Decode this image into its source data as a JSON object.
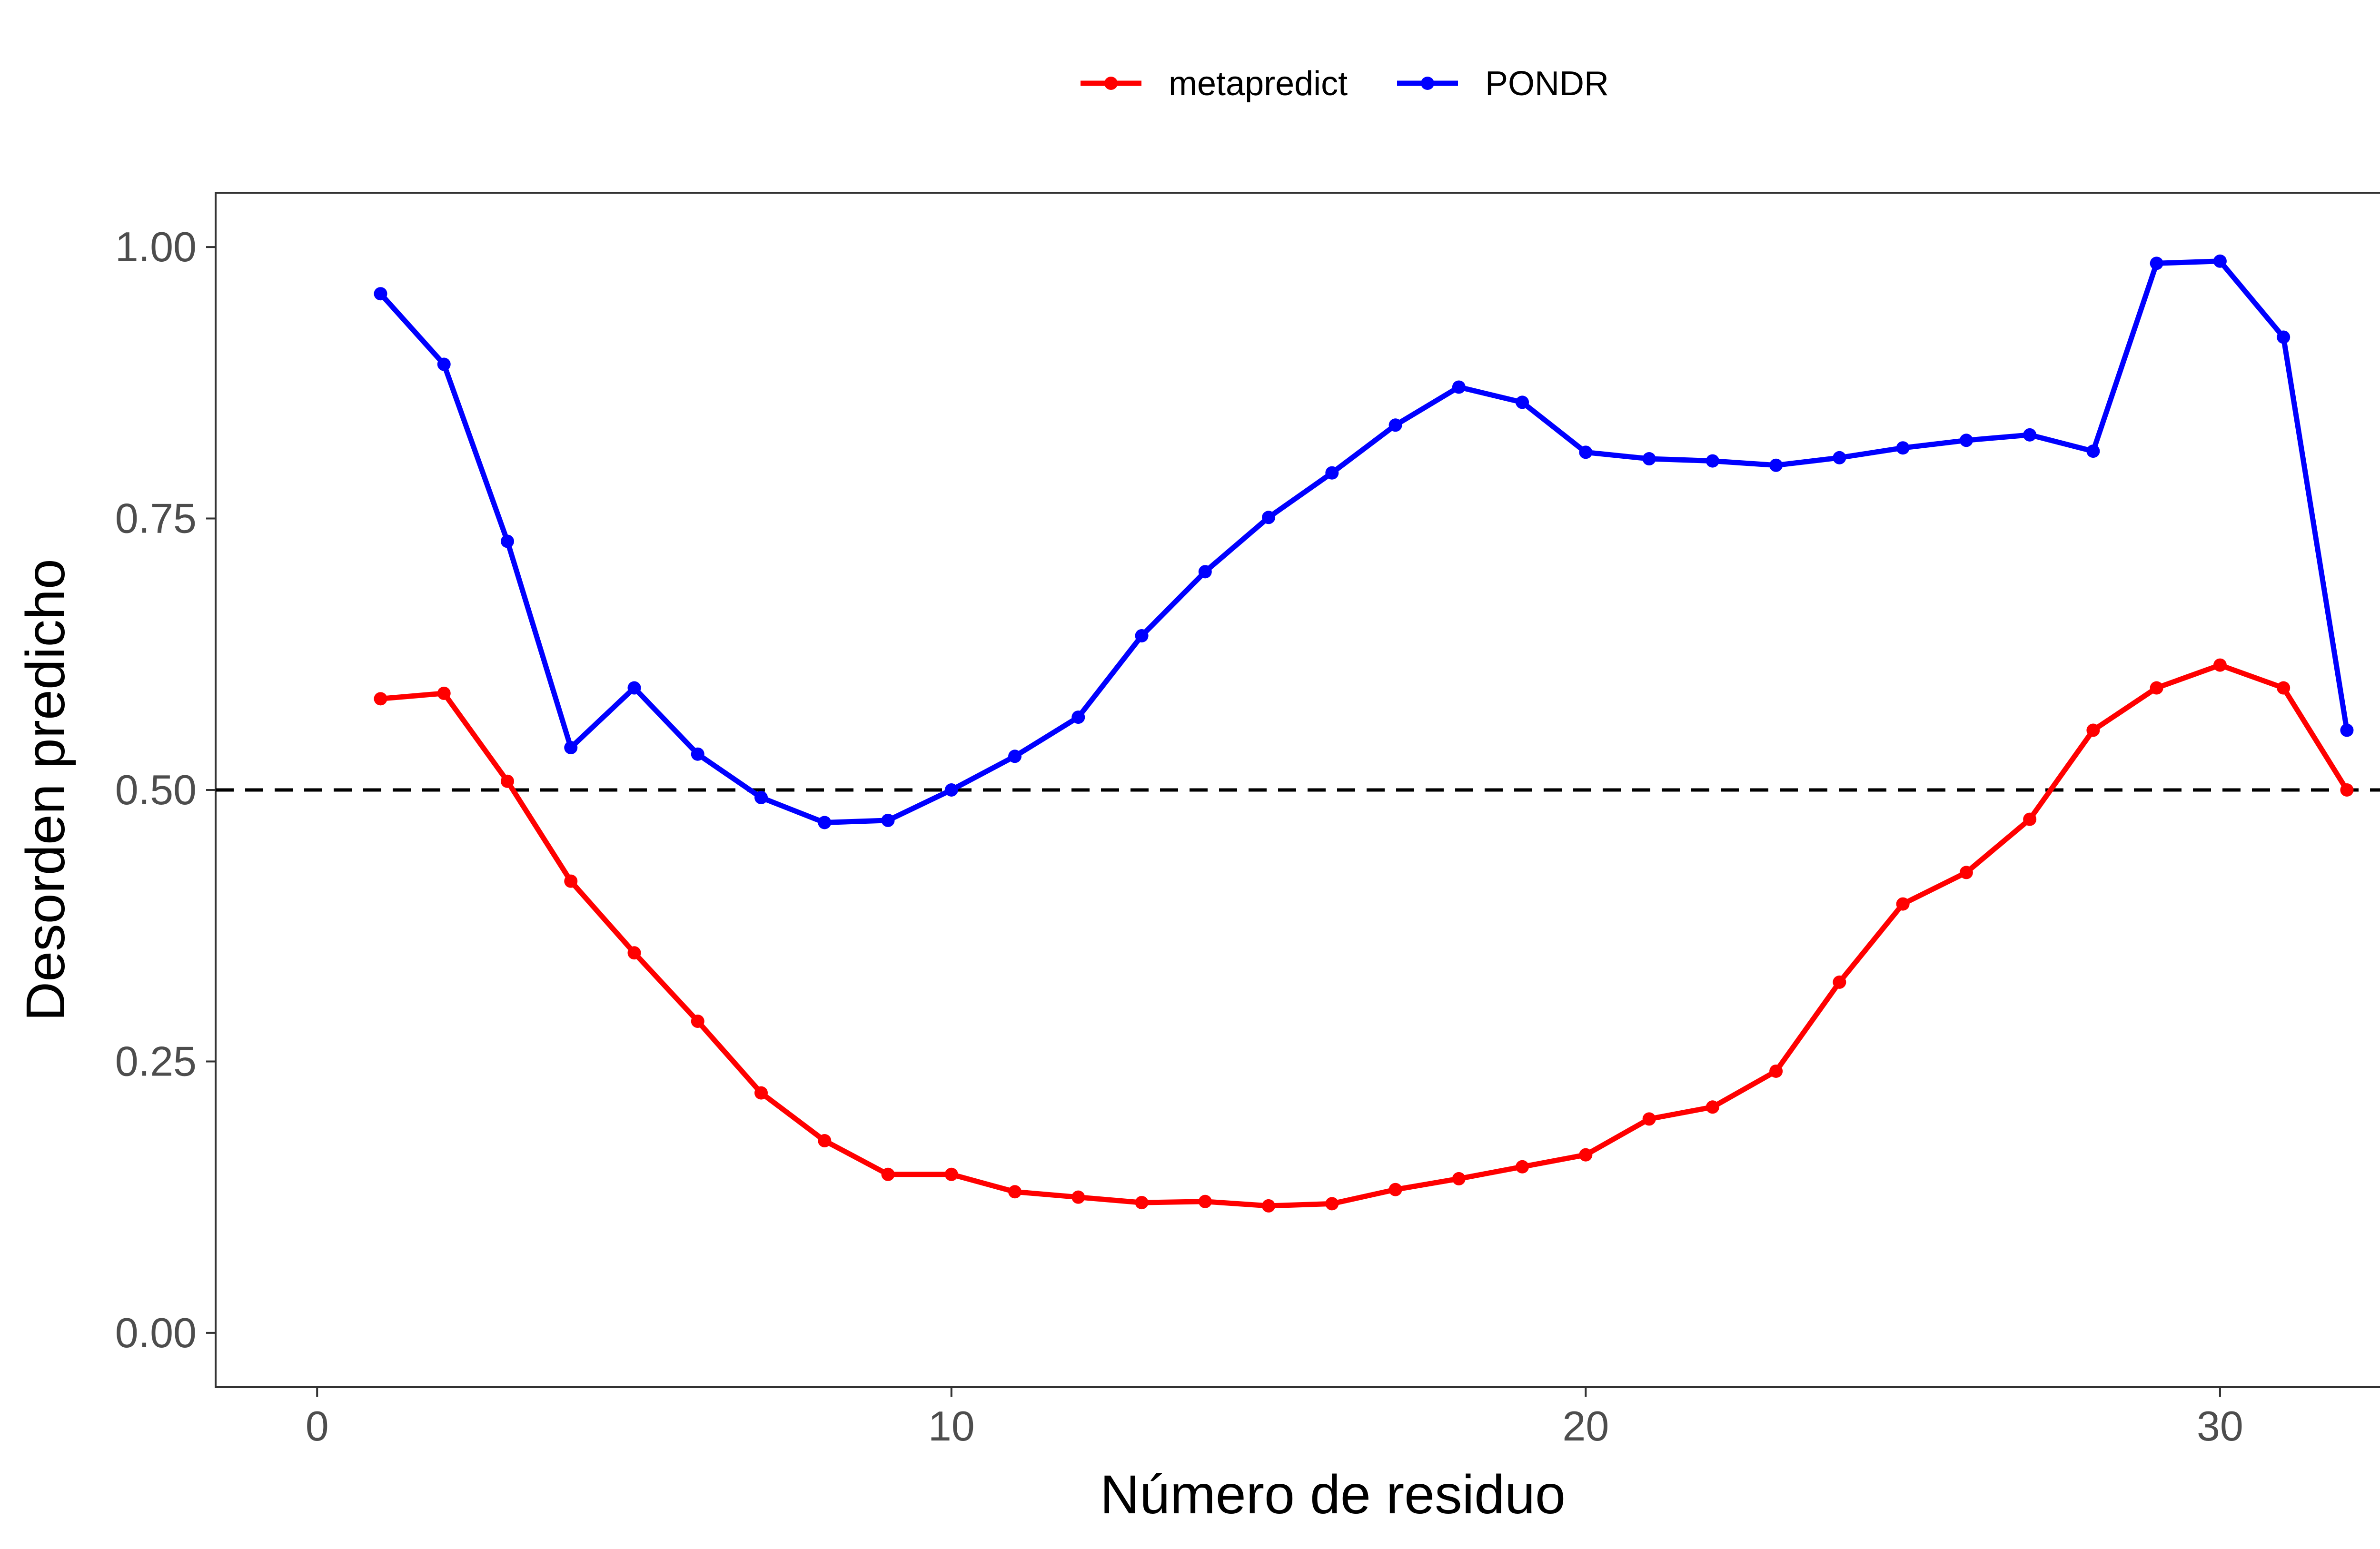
{
  "chart_data": {
    "type": "line",
    "xlabel": "Número de residuo",
    "ylabel": "Desorden predicho",
    "xlim": [
      -1.6,
      33.4
    ],
    "ylim": [
      -0.05,
      1.05
    ],
    "xticks": [
      0,
      10,
      20,
      30
    ],
    "xtick_labels": [
      "0",
      "10",
      "20",
      "30"
    ],
    "yticks": [
      0,
      0.25,
      0.5,
      0.75,
      1.0
    ],
    "ytick_labels": [
      "0.00",
      "0.25",
      "0.50",
      "0.75",
      "1.00"
    ],
    "threshold": 0.5,
    "threshold_style": "dashed",
    "legend_position": "top",
    "grid": false,
    "x": [
      1,
      2,
      3,
      4,
      5,
      6,
      7,
      8,
      9,
      10,
      11,
      12,
      13,
      14,
      15,
      16,
      17,
      18,
      19,
      20,
      21,
      22,
      23,
      24,
      25,
      26,
      27,
      28,
      29,
      30,
      31,
      32
    ],
    "series": [
      {
        "name": "metapredict",
        "color": "#ff0000",
        "values": [
          0.584,
          0.589,
          0.508,
          0.416,
          0.35,
          0.287,
          0.221,
          0.177,
          0.146,
          0.146,
          0.13,
          0.125,
          0.12,
          0.121,
          0.117,
          0.119,
          0.132,
          0.142,
          0.153,
          0.164,
          0.197,
          0.208,
          0.241,
          0.323,
          0.395,
          0.424,
          0.473,
          0.555,
          0.594,
          0.615,
          0.594,
          0.5
        ]
      },
      {
        "name": "PONDR",
        "color": "#0000ff",
        "values": [
          0.957,
          0.892,
          0.729,
          0.539,
          0.594,
          0.533,
          0.493,
          0.47,
          0.472,
          0.5,
          0.531,
          0.567,
          0.642,
          0.701,
          0.751,
          0.792,
          0.836,
          0.871,
          0.857,
          0.811,
          0.805,
          0.803,
          0.799,
          0.806,
          0.815,
          0.822,
          0.827,
          0.812,
          0.985,
          0.987,
          0.917,
          0.555
        ]
      }
    ]
  }
}
